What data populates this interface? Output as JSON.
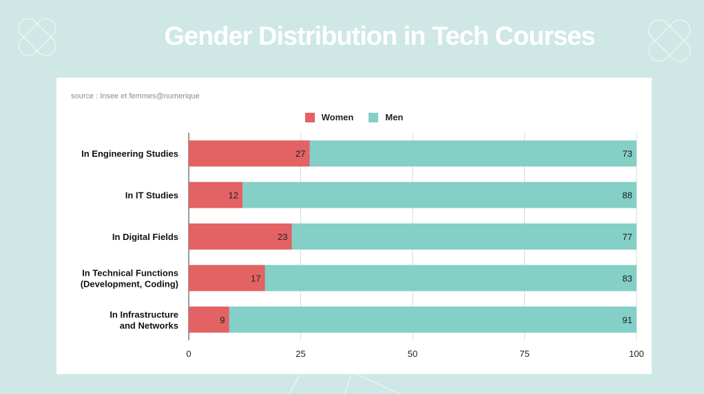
{
  "title": "Gender Distribution in Tech Courses",
  "source": "source : Insee et femmes@numerique",
  "colors": {
    "women": "#e36264",
    "men": "#84cfc6",
    "background": "#cfe8e5"
  },
  "chart_data": {
    "type": "bar",
    "orientation": "horizontal",
    "stacked": true,
    "categories": [
      [
        "In Engineering Studies"
      ],
      [
        "In IT Studies"
      ],
      [
        "In Digital Fields"
      ],
      [
        "In Technical Functions",
        "(Development, Coding)"
      ],
      [
        "In Infrastructure",
        "and Networks"
      ]
    ],
    "series": [
      {
        "name": "Women",
        "values": [
          27,
          12,
          23,
          17,
          9
        ]
      },
      {
        "name": "Men",
        "values": [
          73,
          88,
          77,
          83,
          91
        ]
      }
    ],
    "xlim": [
      0,
      100
    ],
    "xticks": [
      0,
      25,
      50,
      75,
      100
    ],
    "grid": true,
    "legend": "top-center"
  }
}
